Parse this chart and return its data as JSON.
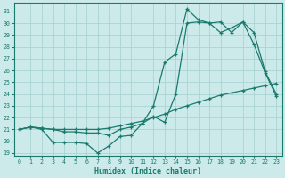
{
  "xlabel": "Humidex (Indice chaleur)",
  "bg_color": "#cceaea",
  "grid_color": "#aad4d4",
  "line_color": "#1a7a6e",
  "xlim": [
    -0.5,
    23.5
  ],
  "ylim": [
    18.8,
    31.7
  ],
  "xticks": [
    0,
    1,
    2,
    3,
    4,
    5,
    6,
    7,
    8,
    9,
    10,
    11,
    12,
    13,
    14,
    15,
    16,
    17,
    18,
    19,
    20,
    21,
    22,
    23
  ],
  "yticks": [
    19,
    20,
    21,
    22,
    23,
    24,
    25,
    26,
    27,
    28,
    29,
    30,
    31
  ],
  "line1_x": [
    0,
    1,
    2,
    3,
    4,
    5,
    6,
    7,
    8,
    9,
    10,
    11,
    12,
    13,
    14,
    15,
    16,
    17,
    18,
    19,
    20,
    21,
    22,
    23
  ],
  "line1_y": [
    21.0,
    21.2,
    21.1,
    21.0,
    20.8,
    20.8,
    20.7,
    20.7,
    20.5,
    21.0,
    21.2,
    21.5,
    22.1,
    21.6,
    24.0,
    30.0,
    30.1,
    30.0,
    30.1,
    29.2,
    30.1,
    29.2,
    25.9,
    24.0
  ],
  "line2_x": [
    0,
    1,
    2,
    3,
    4,
    5,
    6,
    7,
    8,
    9,
    10,
    11,
    12,
    13,
    14,
    15,
    16,
    17,
    18,
    19,
    20,
    21,
    22,
    23
  ],
  "line2_y": [
    21.0,
    21.2,
    21.0,
    19.9,
    19.9,
    19.9,
    19.8,
    19.0,
    19.6,
    20.4,
    20.5,
    21.5,
    23.0,
    26.7,
    27.4,
    31.2,
    30.3,
    30.0,
    29.2,
    29.6,
    30.1,
    28.2,
    25.8,
    23.8
  ],
  "line3_x": [
    0,
    1,
    2,
    3,
    4,
    5,
    6,
    7,
    8,
    9,
    10,
    11,
    12,
    13,
    14,
    15,
    16,
    17,
    18,
    19,
    20,
    21,
    22,
    23
  ],
  "line3_y": [
    21.0,
    21.2,
    21.1,
    21.0,
    21.0,
    21.0,
    21.0,
    21.0,
    21.1,
    21.3,
    21.5,
    21.7,
    22.0,
    22.3,
    22.7,
    23.0,
    23.3,
    23.6,
    23.9,
    24.1,
    24.3,
    24.5,
    24.7,
    24.9
  ]
}
